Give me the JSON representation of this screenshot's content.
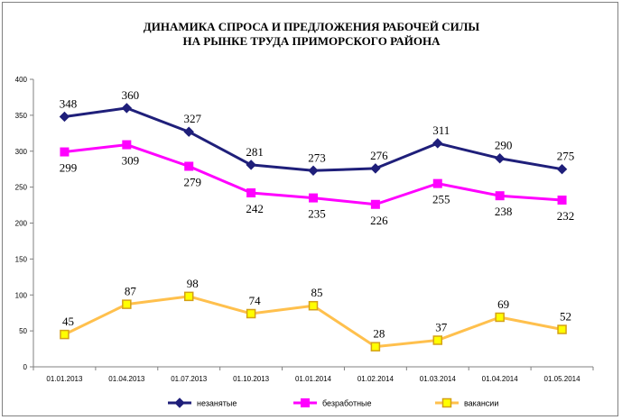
{
  "chart_data": {
    "type": "line",
    "title_lines": [
      "ДИНАМИКА СПРОСА И ПРЕДЛОЖЕНИЯ РАБОЧЕЙ СИЛЫ",
      "НА РЫНКЕ ТРУДА ПРИМОРСКОГО РАЙОНА"
    ],
    "categories": [
      "01.01.2013",
      "01.04.2013",
      "01.07.2013",
      "01.10.2013",
      "01.01.2014",
      "01.02.2014",
      "01.03.2014",
      "01.04.2014",
      "01.05.2014"
    ],
    "ylim": [
      0,
      400
    ],
    "yticks": [
      0,
      50,
      100,
      150,
      200,
      250,
      300,
      350,
      400
    ],
    "grid": false,
    "legend_position": "bottom",
    "series": [
      {
        "name": "незанятые",
        "values": [
          348,
          360,
          327,
          281,
          273,
          276,
          311,
          290,
          275
        ],
        "color": "#1f1f7a",
        "marker": "diamond",
        "label_side": "above"
      },
      {
        "name": "безработные",
        "values": [
          299,
          309,
          279,
          242,
          235,
          226,
          255,
          238,
          232
        ],
        "color": "#ff00ff",
        "marker": "square",
        "label_side": "below"
      },
      {
        "name": "вакансии",
        "values": [
          45,
          87,
          98,
          74,
          85,
          28,
          37,
          69,
          52
        ],
        "color": "#ffc04d",
        "marker": "square-hollow",
        "marker_fill": "#ffff00",
        "marker_stroke": "#d4a017",
        "label_side": "above"
      }
    ]
  }
}
